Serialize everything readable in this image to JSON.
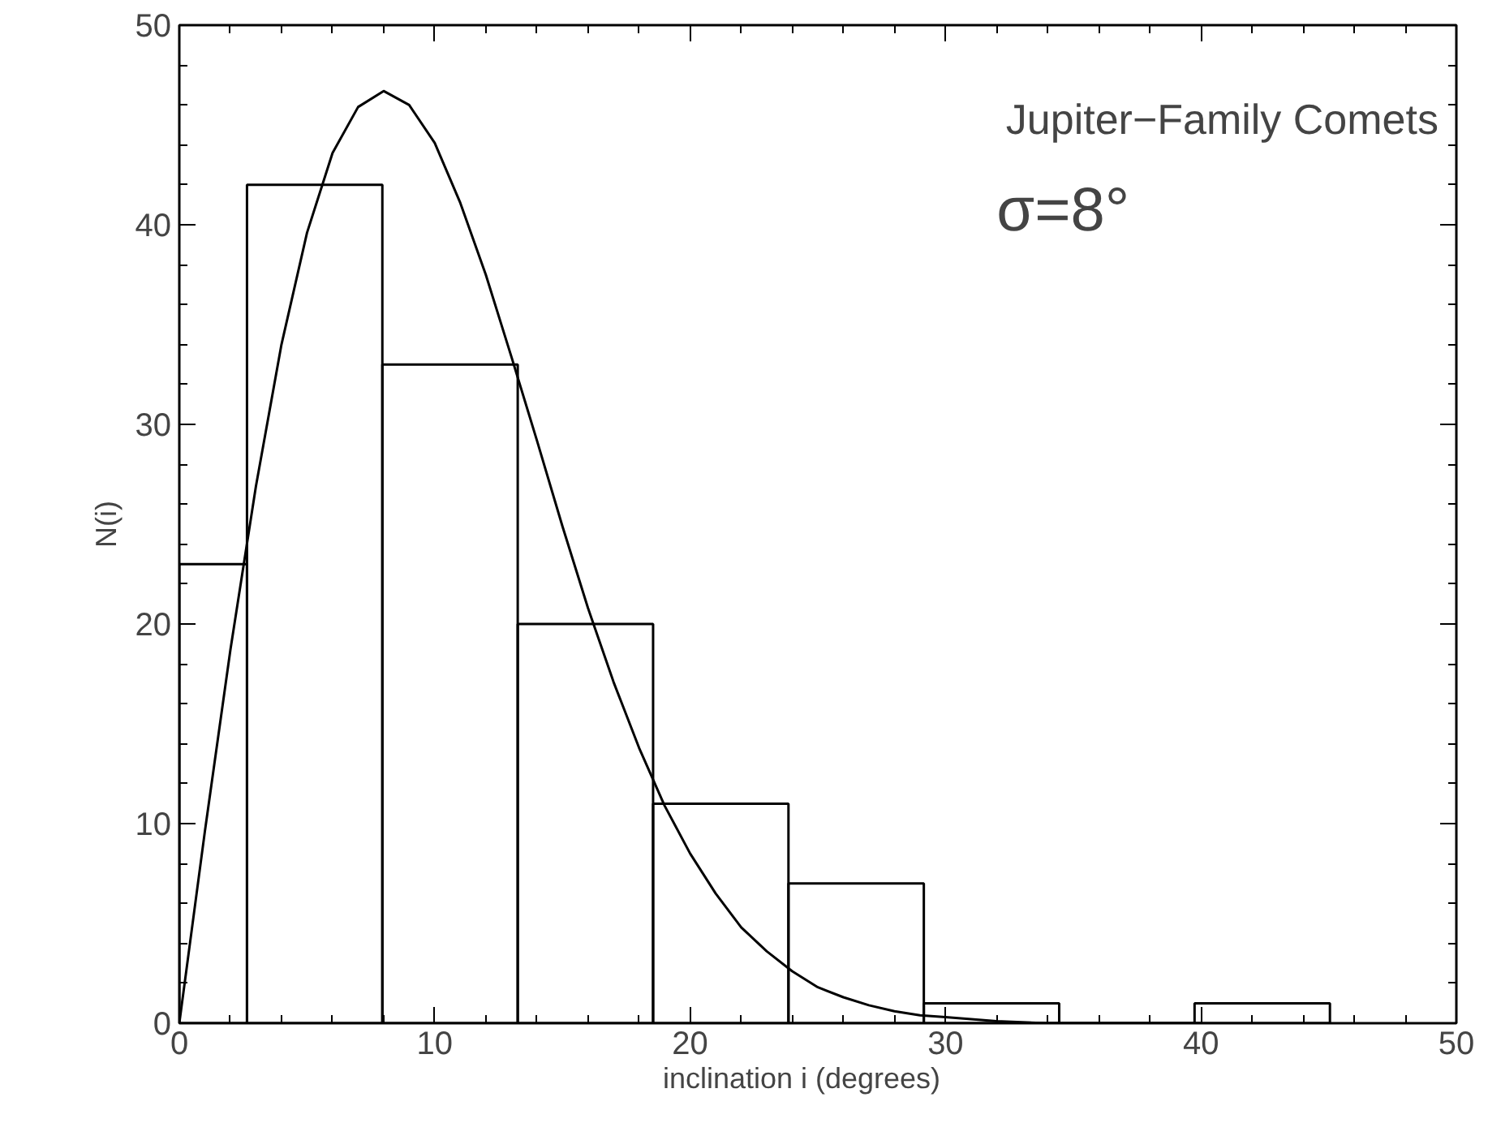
{
  "chart_data": {
    "type": "histogram",
    "xlabel": "inclination i     (degrees)",
    "ylabel": "N(i)",
    "annotations": [
      "Jupiter−Family Comets",
      "σ=8°"
    ],
    "bins": [
      0,
      2.65,
      7.95,
      13.25,
      18.55,
      23.85,
      29.15,
      34.45,
      39.75,
      45.05
    ],
    "values": [
      23,
      42,
      33,
      20,
      11,
      7,
      1,
      0,
      1
    ],
    "color": "#000000",
    "series": [
      {
        "type": "line",
        "color": "#000000",
        "x": [
          0,
          1,
          2,
          3,
          4,
          5,
          6,
          7,
          8,
          9,
          10,
          11,
          12,
          13,
          14,
          15,
          16,
          17,
          18,
          19,
          20,
          21,
          22,
          23,
          24,
          25,
          26,
          27,
          28,
          29,
          30,
          32,
          34,
          36,
          40
        ],
        "values": [
          0,
          9.6,
          18.7,
          26.9,
          34.0,
          39.6,
          43.6,
          45.9,
          46.7,
          46.0,
          44.1,
          41.1,
          37.5,
          33.4,
          29.2,
          24.9,
          20.8,
          17.1,
          13.8,
          10.9,
          8.5,
          6.5,
          4.8,
          3.6,
          2.6,
          1.8,
          1.3,
          0.9,
          0.6,
          0.4,
          0.3,
          0.1,
          0,
          0,
          0
        ]
      }
    ],
    "xlim": [
      0,
      50
    ],
    "ylim": [
      0,
      50
    ],
    "xticks": [
      0,
      10,
      20,
      30,
      40,
      50
    ],
    "yticks": [
      0,
      10,
      20,
      30,
      40,
      50
    ],
    "grid": false
  }
}
